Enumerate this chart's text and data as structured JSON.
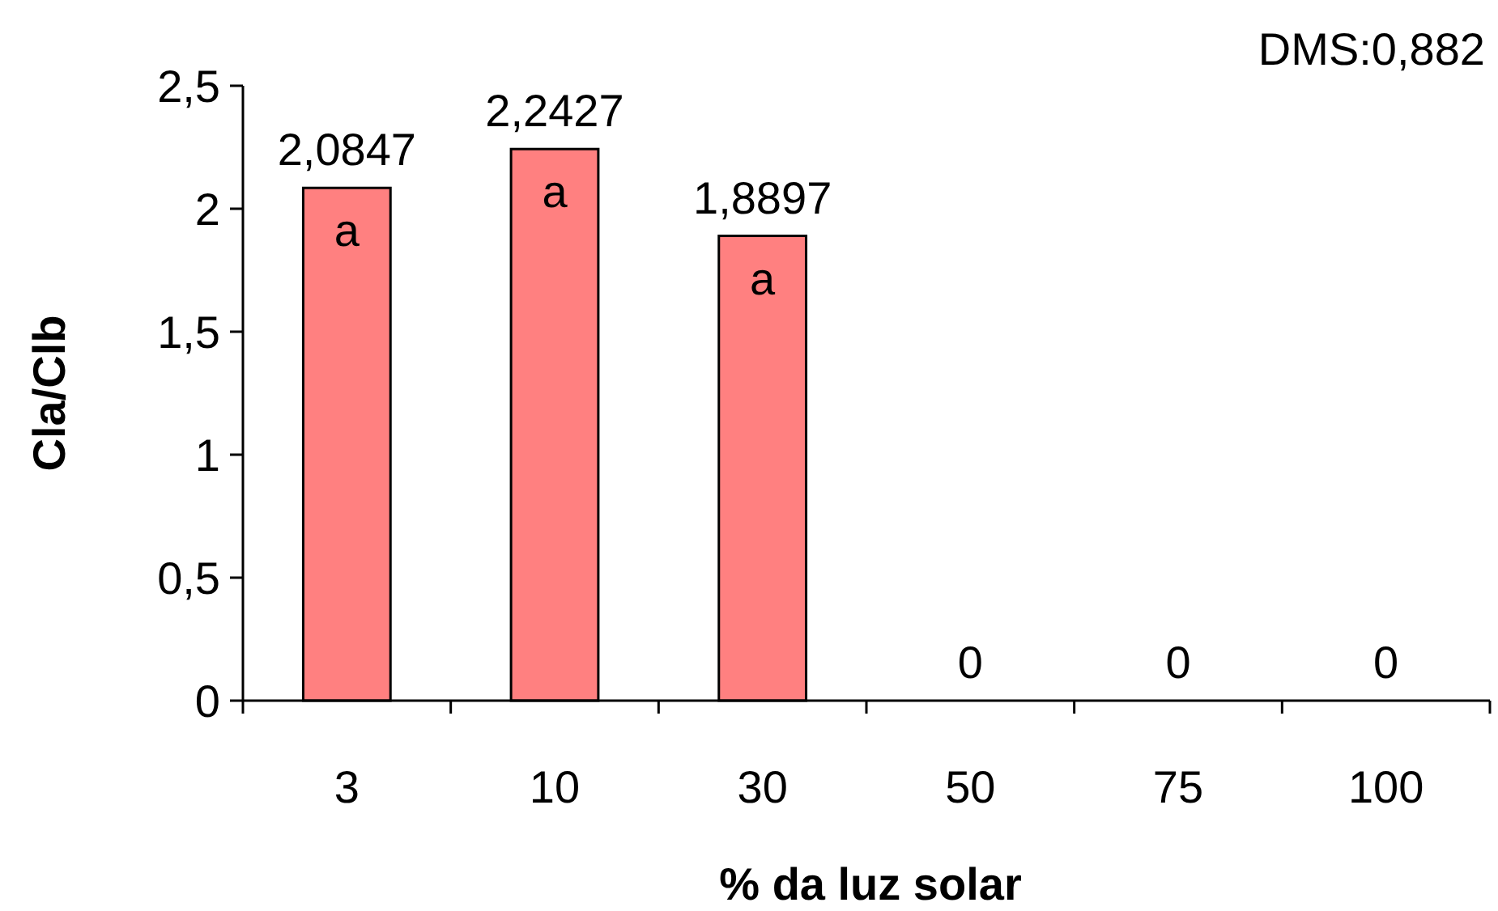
{
  "chart_data": {
    "type": "bar",
    "xlabel": "% da luz solar",
    "ylabel": "Cla/Clb",
    "categories": [
      "3",
      "10",
      "30",
      "50",
      "75",
      "100"
    ],
    "values": [
      2.0847,
      2.2427,
      1.8897,
      0,
      0,
      0
    ],
    "value_labels": [
      "2,0847",
      "2,2427",
      "1,8897",
      "0",
      "0",
      "0"
    ],
    "color": "#ff8080",
    "ylim": [
      0,
      2.5
    ],
    "yticks": [
      0,
      {
        "value": 0.5,
        "label": "0,5"
      },
      1,
      {
        "value": 1.5,
        "label": "1,5"
      },
      2,
      {
        "value": 2.5,
        "label": "2,5"
      }
    ],
    "annotations": [
      "DMS:0,882",
      {
        "text": "a",
        "x": "3",
        "y": 2.0847
      },
      {
        "text": "a",
        "x": "10",
        "y": 2.2427
      },
      {
        "text": "a",
        "x": "30",
        "y": 1.8897
      }
    ]
  }
}
